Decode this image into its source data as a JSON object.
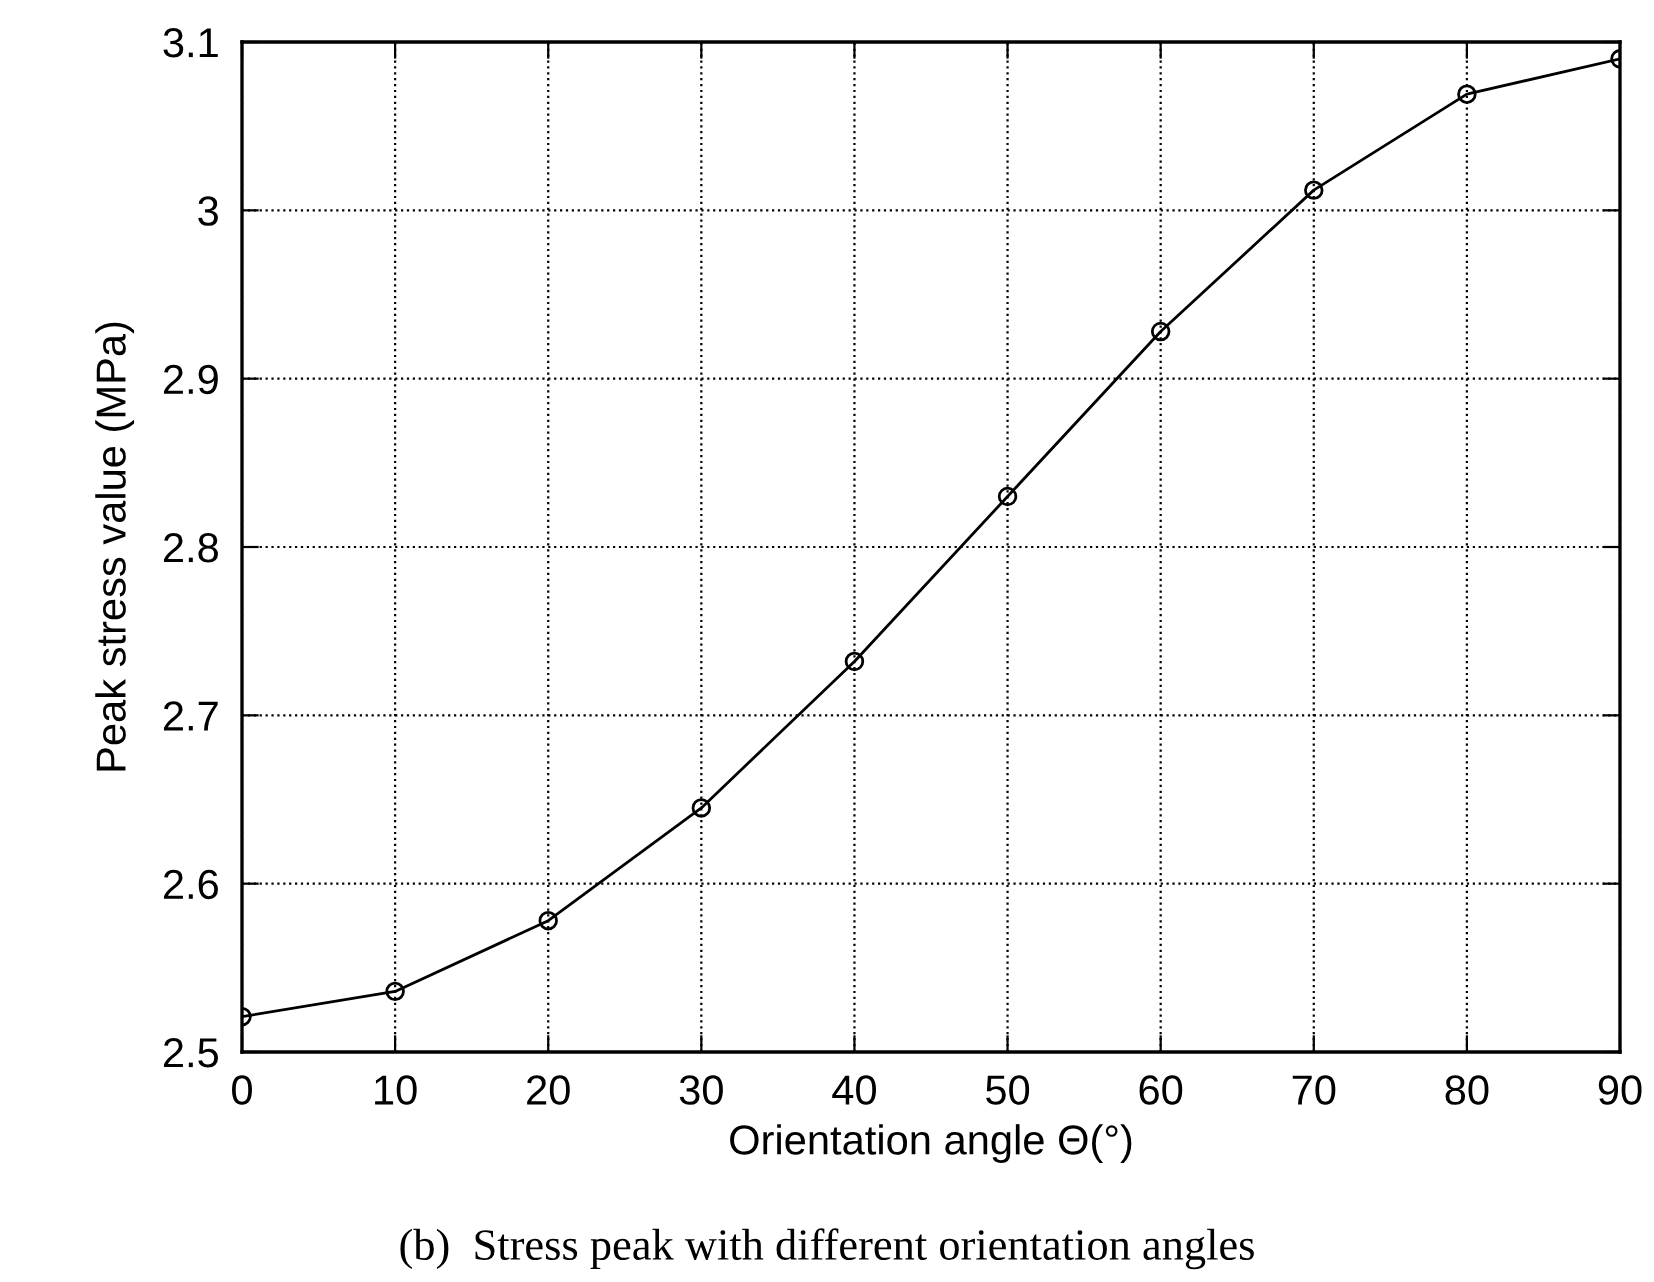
{
  "chart_data": {
    "type": "line",
    "xlabel": "Orientation angle Θ(°)",
    "ylabel": "Peak stress value (MPa)",
    "x": [
      0,
      10,
      20,
      30,
      40,
      50,
      60,
      70,
      80,
      90
    ],
    "series": [
      {
        "color": "#000000",
        "values": [
          2.521,
          2.536,
          2.578,
          2.645,
          2.732,
          2.83,
          2.928,
          3.012,
          3.069,
          3.09
        ]
      }
    ],
    "xlim": [
      0,
      90
    ],
    "xticks": [
      0,
      10,
      20,
      30,
      40,
      50,
      60,
      70,
      80,
      90
    ],
    "ylim": [
      2.5,
      3.1
    ],
    "yticks": [
      2.5,
      2.6,
      2.7,
      2.8,
      2.9,
      {
        "value": 3.0,
        "label": "3"
      },
      3.1
    ],
    "grid": true,
    "marker": "circle",
    "line_style": "solid",
    "annotations": [
      "(b)  Stress peak with different orientation angles"
    ]
  }
}
